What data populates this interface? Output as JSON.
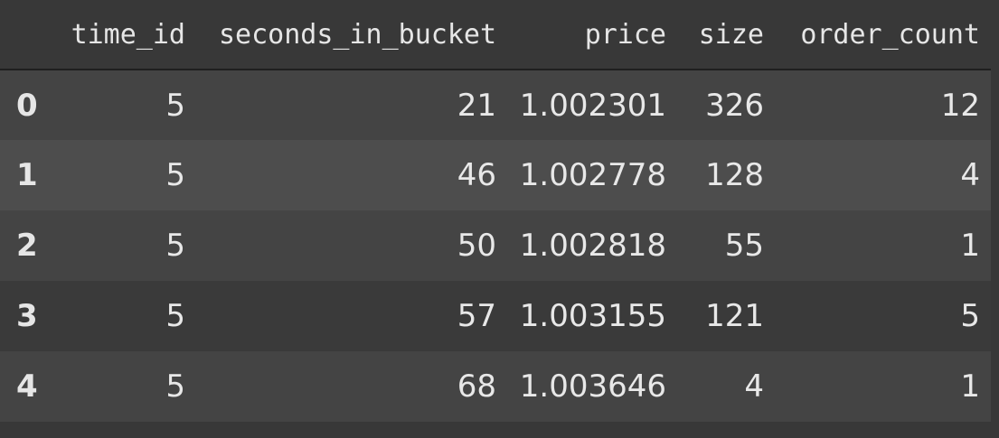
{
  "table": {
    "columns": [
      "",
      "time_id",
      "seconds_in_bucket",
      "price",
      "size",
      "order_count"
    ],
    "rows": [
      {
        "index": "0",
        "time_id": "5",
        "seconds_in_bucket": "21",
        "price": "1.002301",
        "size": "326",
        "order_count": "12"
      },
      {
        "index": "1",
        "time_id": "5",
        "seconds_in_bucket": "46",
        "price": "1.002778",
        "size": "128",
        "order_count": "4"
      },
      {
        "index": "2",
        "time_id": "5",
        "seconds_in_bucket": "50",
        "price": "1.002818",
        "size": "55",
        "order_count": "1"
      },
      {
        "index": "3",
        "time_id": "5",
        "seconds_in_bucket": "57",
        "price": "1.003155",
        "size": "121",
        "order_count": "5"
      },
      {
        "index": "4",
        "time_id": "5",
        "seconds_in_bucket": "68",
        "price": "1.003646",
        "size": "4",
        "order_count": "1"
      }
    ]
  },
  "colors": {
    "background": "#383838",
    "row_band_a": "#444444",
    "row_band_b": "#4d4d4d",
    "text": "#e8e8e8"
  }
}
